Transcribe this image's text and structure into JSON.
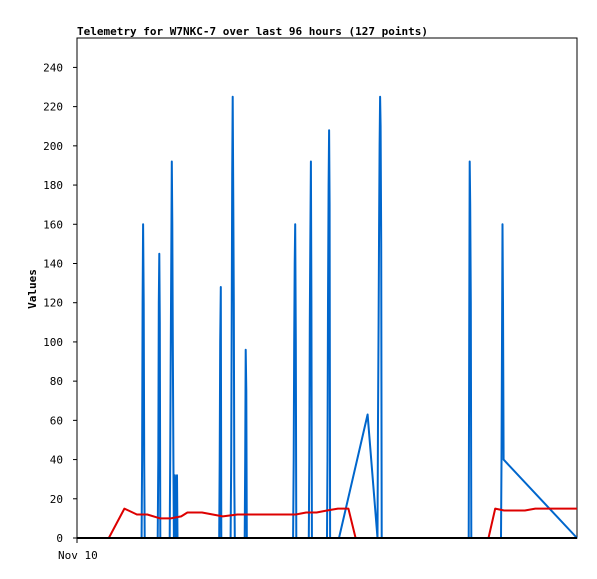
{
  "chart_data": {
    "type": "line",
    "title": "Telemetry for W7NKC-7 over last 96 hours (127 points)",
    "xlabel": "",
    "ylabel": "Values",
    "x_tick_labels": [
      "Nov 10"
    ],
    "xlim": [
      0,
      96
    ],
    "ylim": [
      0,
      255
    ],
    "y_ticks": [
      0,
      20,
      40,
      60,
      80,
      100,
      120,
      140,
      160,
      180,
      200,
      220,
      240
    ],
    "grid": false,
    "legend": "none",
    "series": [
      {
        "color": "#0066cc",
        "x": [
          0,
          12.4,
          12.5,
          12.6,
          12.7,
          12.8,
          12.9,
          13.0,
          15.5,
          15.6,
          15.7,
          15.8,
          15.9,
          16.0,
          17.8,
          17.9,
          18.0,
          18.1,
          18.2,
          18.3,
          18.4,
          18.5,
          18.6,
          18.7,
          18.8,
          19.0,
          19.1,
          19.2,
          19.3,
          27.3,
          27.4,
          27.5,
          27.6,
          27.7,
          29.5,
          29.6,
          29.7,
          29.8,
          29.9,
          30.0,
          30.1,
          30.2,
          30.3,
          32.2,
          32.3,
          32.4,
          32.5,
          32.6,
          41.5,
          41.6,
          41.7,
          41.8,
          41.9,
          42.0,
          42.1,
          44.5,
          44.6,
          44.7,
          44.8,
          44.9,
          45.0,
          45.1,
          48.0,
          48.1,
          48.2,
          48.3,
          48.4,
          48.5,
          48.6,
          50.3,
          55.8,
          57.7,
          57.8,
          57.9,
          58.0,
          58.1,
          58.2,
          58.3,
          58.4,
          58.5,
          58.6,
          75.2,
          75.3,
          75.4,
          75.5,
          75.6,
          75.7,
          81.4,
          81.5,
          81.6,
          81.7,
          81.8,
          81.9,
          96
        ],
        "y": [
          0,
          0,
          40,
          120,
          160,
          120,
          40,
          0,
          0,
          40,
          120,
          145,
          110,
          0,
          0,
          40,
          100,
          145,
          192,
          160,
          100,
          40,
          0,
          20,
          32,
          0,
          22,
          32,
          0,
          0,
          40,
          100,
          128,
          0,
          0,
          40,
          110,
          185,
          225,
          170,
          120,
          30,
          0,
          0,
          40,
          96,
          75,
          0,
          0,
          40,
          100,
          140,
          160,
          100,
          0,
          0,
          40,
          110,
          150,
          192,
          120,
          0,
          0,
          40,
          120,
          180,
          208,
          170,
          0,
          0,
          63,
          0,
          60,
          110,
          160,
          200,
          225,
          210,
          150,
          0,
          0,
          0,
          100,
          192,
          170,
          120,
          0,
          0,
          40,
          100,
          160,
          120,
          40,
          0
        ]
      },
      {
        "color": "#dd0000",
        "x": [
          0,
          6.1,
          9.1,
          11.5,
          13.5,
          16.0,
          18.0,
          20.0,
          21.2,
          24.0,
          28.0,
          30.8,
          34.0,
          38.0,
          40.0,
          42.0,
          44.0,
          46.0,
          48.0,
          50.1,
          52.1,
          53.5,
          55.0,
          56.0,
          60.0,
          70.0,
          79.0,
          80.3,
          82.0,
          83.0,
          84.0,
          86.0,
          88.0,
          89.0,
          90.0,
          92.0,
          94.0,
          96
        ],
        "y": [
          0,
          0,
          15,
          12,
          12,
          10,
          10,
          11,
          13,
          13,
          11,
          12,
          12,
          12,
          12,
          12,
          13,
          13,
          14,
          15,
          15,
          0,
          0,
          0,
          0,
          0,
          0,
          15,
          14,
          14,
          14,
          14,
          15,
          15,
          15,
          15,
          15,
          15
        ]
      }
    ]
  }
}
